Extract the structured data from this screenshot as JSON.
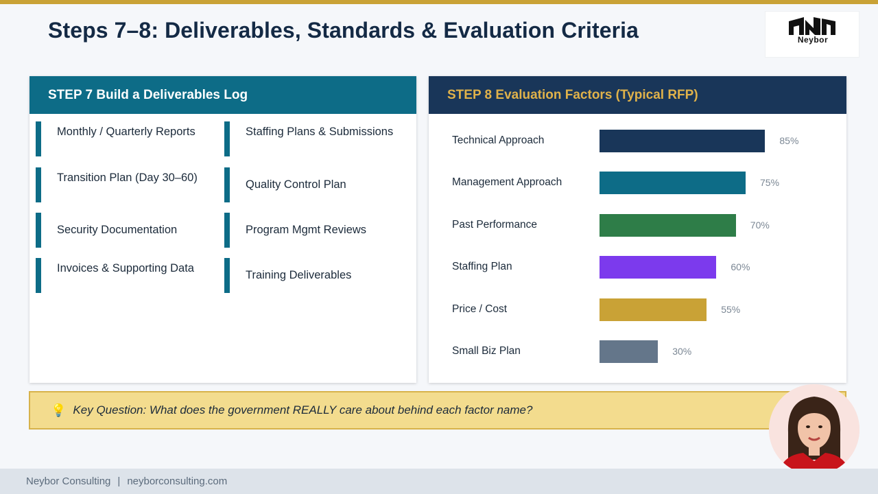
{
  "title": "Steps 7–8: Deliverables, Standards & Evaluation Criteria",
  "logo": {
    "text": "Neybor"
  },
  "step7": {
    "header": "STEP 7  Build a Deliverables Log",
    "items": [
      "Monthly / Quarterly Reports",
      "Staffing Plans & Submissions",
      "Transition Plan (Day 30–60)",
      "Quality Control Plan",
      "Security Documentation",
      "Program Mgmt Reviews",
      "Invoices & Supporting Data",
      "Training Deliverables"
    ]
  },
  "step8": {
    "header": "STEP 8  Evaluation Factors (Typical RFP)"
  },
  "chart_data": {
    "type": "bar",
    "orientation": "horizontal",
    "title": "",
    "categories": [
      "Technical Approach",
      "Management Approach",
      "Past Performance",
      "Staffing Plan",
      "Price / Cost",
      "Small Biz Plan"
    ],
    "values": [
      85,
      75,
      70,
      60,
      55,
      30
    ],
    "value_labels": [
      "85%",
      "75%",
      "70%",
      "60%",
      "55%",
      "30%"
    ],
    "colors": [
      "#193659",
      "#0d6c87",
      "#2e7d48",
      "#7c3aed",
      "#c9a236",
      "#64768a"
    ],
    "xlim": [
      0,
      100
    ],
    "grid": false
  },
  "callout": {
    "icon": "lightbulb-icon",
    "text": "Key Question: What does the government REALLY care about behind each factor name?"
  },
  "footer": {
    "company": "Neybor Consulting",
    "separator": "|",
    "website": "neyborconsulting.com"
  }
}
